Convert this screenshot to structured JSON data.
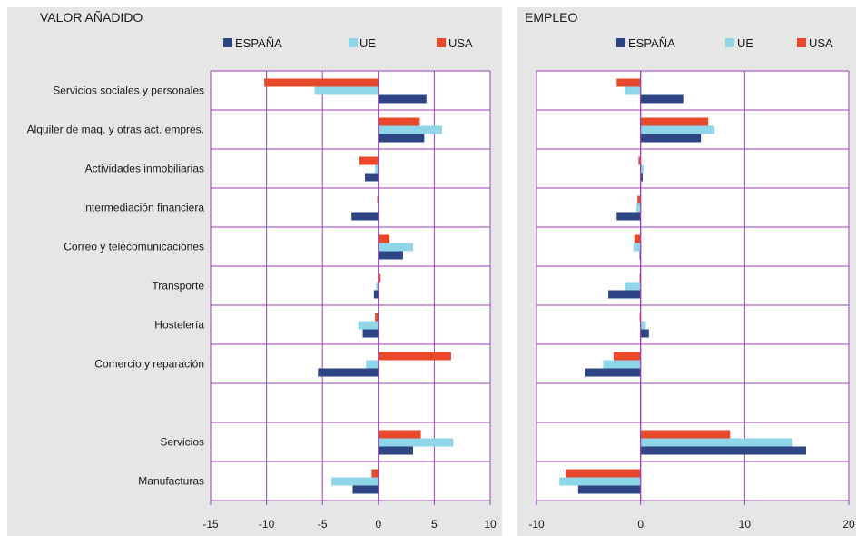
{
  "chart_data": [
    {
      "type": "bar",
      "orientation": "horizontal",
      "title": "VALOR AÑADIDO",
      "categories": [
        "Servicios sociales y personales",
        "Alquiler de maq. y otras act. empres.",
        "Actividades inmobiliarias",
        "Intermediación financiera",
        "Correo y telecomunicaciones",
        "Transporte",
        "Hostelería",
        "Comercio y reparación",
        "",
        "Servicios",
        "Manufacturas"
      ],
      "series": [
        {
          "name": "USA",
          "color": "#e8472a",
          "values": [
            -10.2,
            3.7,
            -1.7,
            -0.1,
            1.0,
            0.2,
            -0.3,
            6.5,
            null,
            3.8,
            -0.6
          ]
        },
        {
          "name": "UE",
          "color": "#8fd6e8",
          "values": [
            -5.7,
            5.7,
            -0.3,
            0.0,
            3.1,
            -0.2,
            -1.8,
            -1.1,
            null,
            6.7,
            -4.2
          ]
        },
        {
          "name": "ESPAÑA",
          "color": "#2e4585",
          "values": [
            4.3,
            4.1,
            -1.2,
            -2.4,
            2.2,
            -0.4,
            -1.4,
            -5.4,
            null,
            3.1,
            -2.3
          ]
        }
      ],
      "legend": [
        "ESPAÑA",
        "UE",
        "USA"
      ],
      "legend_position": "top",
      "xlim": [
        -15,
        10
      ],
      "xticks": [
        "-15",
        "-10",
        "-5",
        "0",
        "5",
        "10"
      ],
      "grid": true
    },
    {
      "type": "bar",
      "orientation": "horizontal",
      "title": "EMPLEO",
      "categories": [
        "Servicios sociales y personales",
        "Alquiler de maq. y otras act. empres.",
        "Actividades inmobiliarias",
        "Intermediación financiera",
        "Correo y telecomunicaciones",
        "Transporte",
        "Hostelería",
        "Comercio y reparación",
        "",
        "Servicios",
        "Manufacturas"
      ],
      "series": [
        {
          "name": "USA",
          "color": "#e8472a",
          "values": [
            -2.3,
            6.5,
            -0.2,
            -0.3,
            -0.6,
            -0.1,
            -0.1,
            -2.6,
            null,
            8.6,
            -7.2
          ]
        },
        {
          "name": "UE",
          "color": "#8fd6e8",
          "values": [
            -1.5,
            7.1,
            0.3,
            -0.4,
            -0.7,
            -1.5,
            0.5,
            -3.6,
            null,
            14.6,
            -7.8
          ]
        },
        {
          "name": "ESPAÑA",
          "color": "#2e4585",
          "values": [
            4.1,
            5.8,
            0.2,
            -2.3,
            -0.1,
            -3.1,
            0.8,
            -5.3,
            null,
            15.9,
            -6.0
          ]
        }
      ],
      "legend": [
        "ESPAÑA",
        "UE",
        "USA"
      ],
      "legend_position": "top",
      "xlim": [
        -10,
        20
      ],
      "xticks": [
        "-10",
        "0",
        "10",
        "20"
      ],
      "grid": true
    }
  ]
}
